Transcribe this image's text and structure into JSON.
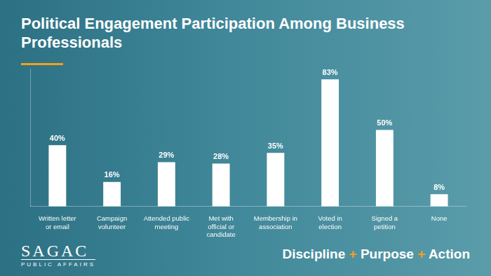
{
  "chart_data": {
    "type": "bar",
    "title": "Political Engagement Participation Among Business Professionals",
    "categories": [
      "Written letter or email",
      "Campaign volunteer",
      "Attended public meeting",
      "Met with official or candidate",
      "Membership in association",
      "Voted in election",
      "Signed a petition",
      "None"
    ],
    "values": [
      40,
      16,
      29,
      28,
      35,
      83,
      50,
      8
    ],
    "value_labels": [
      "40%",
      "16%",
      "29%",
      "28%",
      "35%",
      "83%",
      "50%",
      "8%"
    ],
    "color": "#ffffff",
    "ylim": [
      0,
      90
    ],
    "grid": false,
    "data_labels": true,
    "tick_labels": "x"
  },
  "logo": {
    "name": "SAGAC",
    "subtitle": "PUBLIC AFFAIRS"
  },
  "tagline": "Discipline + Purpose + Action"
}
